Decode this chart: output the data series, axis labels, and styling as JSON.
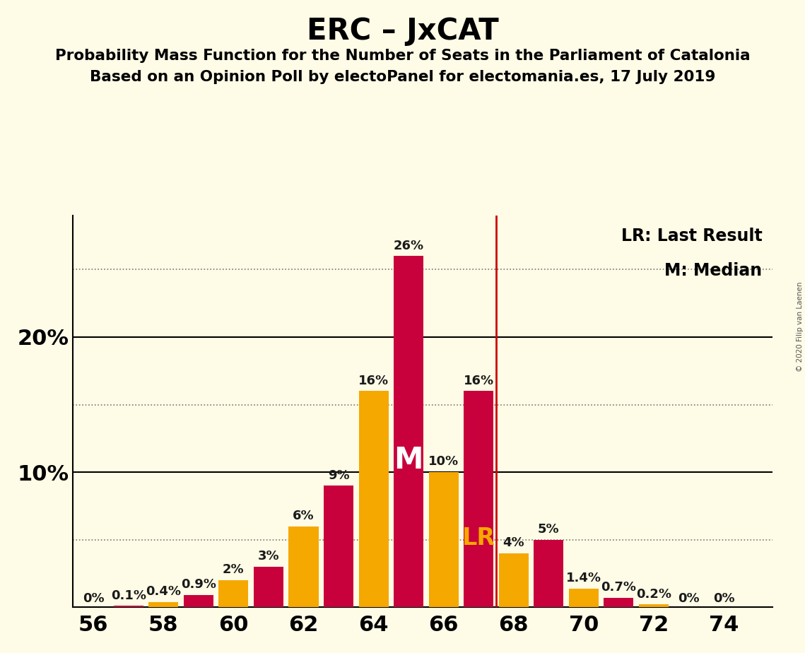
{
  "title": "ERC – JxCAT",
  "subtitle1": "Probability Mass Function for the Number of Seats in the Parliament of Catalonia",
  "subtitle2": "Based on an Opinion Poll by electoPanel for electomania.es, 17 July 2019",
  "copyright": "© 2020 Filip van Laenen",
  "background_color": "#FEFBE6",
  "orange_color": "#F5A800",
  "red_color": "#C8003C",
  "lr_line_color": "#CC0000",
  "seats": [
    56,
    57,
    58,
    59,
    60,
    61,
    62,
    63,
    64,
    65,
    66,
    67,
    68,
    69,
    70,
    71,
    72,
    73,
    74
  ],
  "values": [
    0.0,
    0.1,
    0.4,
    0.9,
    2.0,
    3.0,
    6.0,
    9.0,
    16.0,
    26.0,
    10.0,
    16.0,
    4.0,
    5.0,
    1.4,
    0.7,
    0.2,
    0.0,
    0.0
  ],
  "colors": [
    "#F5A800",
    "#C8003C",
    "#F5A800",
    "#C8003C",
    "#F5A800",
    "#C8003C",
    "#F5A800",
    "#C8003C",
    "#F5A800",
    "#C8003C",
    "#F5A800",
    "#C8003C",
    "#F5A800",
    "#C8003C",
    "#F5A800",
    "#C8003C",
    "#F5A800",
    "#C8003C",
    "#F5A800"
  ],
  "labels": [
    "0%",
    "0.1%",
    "0.4%",
    "0.9%",
    "2%",
    "3%",
    "6%",
    "9%",
    "16%",
    "26%",
    "10%",
    "16%",
    "4%",
    "5%",
    "1.4%",
    "0.7%",
    "0.2%",
    "0%",
    "0%"
  ],
  "median_seat": 65,
  "lr_seat": 67,
  "lr_line_x": 67.5,
  "xlim": [
    55.4,
    75.4
  ],
  "ylim": [
    0,
    29
  ],
  "xticks": [
    56,
    58,
    60,
    62,
    64,
    66,
    68,
    70,
    72,
    74
  ],
  "yticks": [
    0,
    10,
    20
  ],
  "ytick_labels": [
    "",
    "10%",
    "20%"
  ],
  "dotted_lines": [
    5.0,
    15.0,
    25.0
  ],
  "solid_lines": [
    10.0,
    20.0
  ],
  "bar_width": 0.85,
  "title_fontsize": 30,
  "subtitle_fontsize": 15.5,
  "axis_tick_fontsize": 22,
  "bar_label_fontsize": 13,
  "legend_fontsize": 17,
  "median_label_fontsize": 30,
  "lr_label_fontsize": 24,
  "ytick_fontsize": 22
}
